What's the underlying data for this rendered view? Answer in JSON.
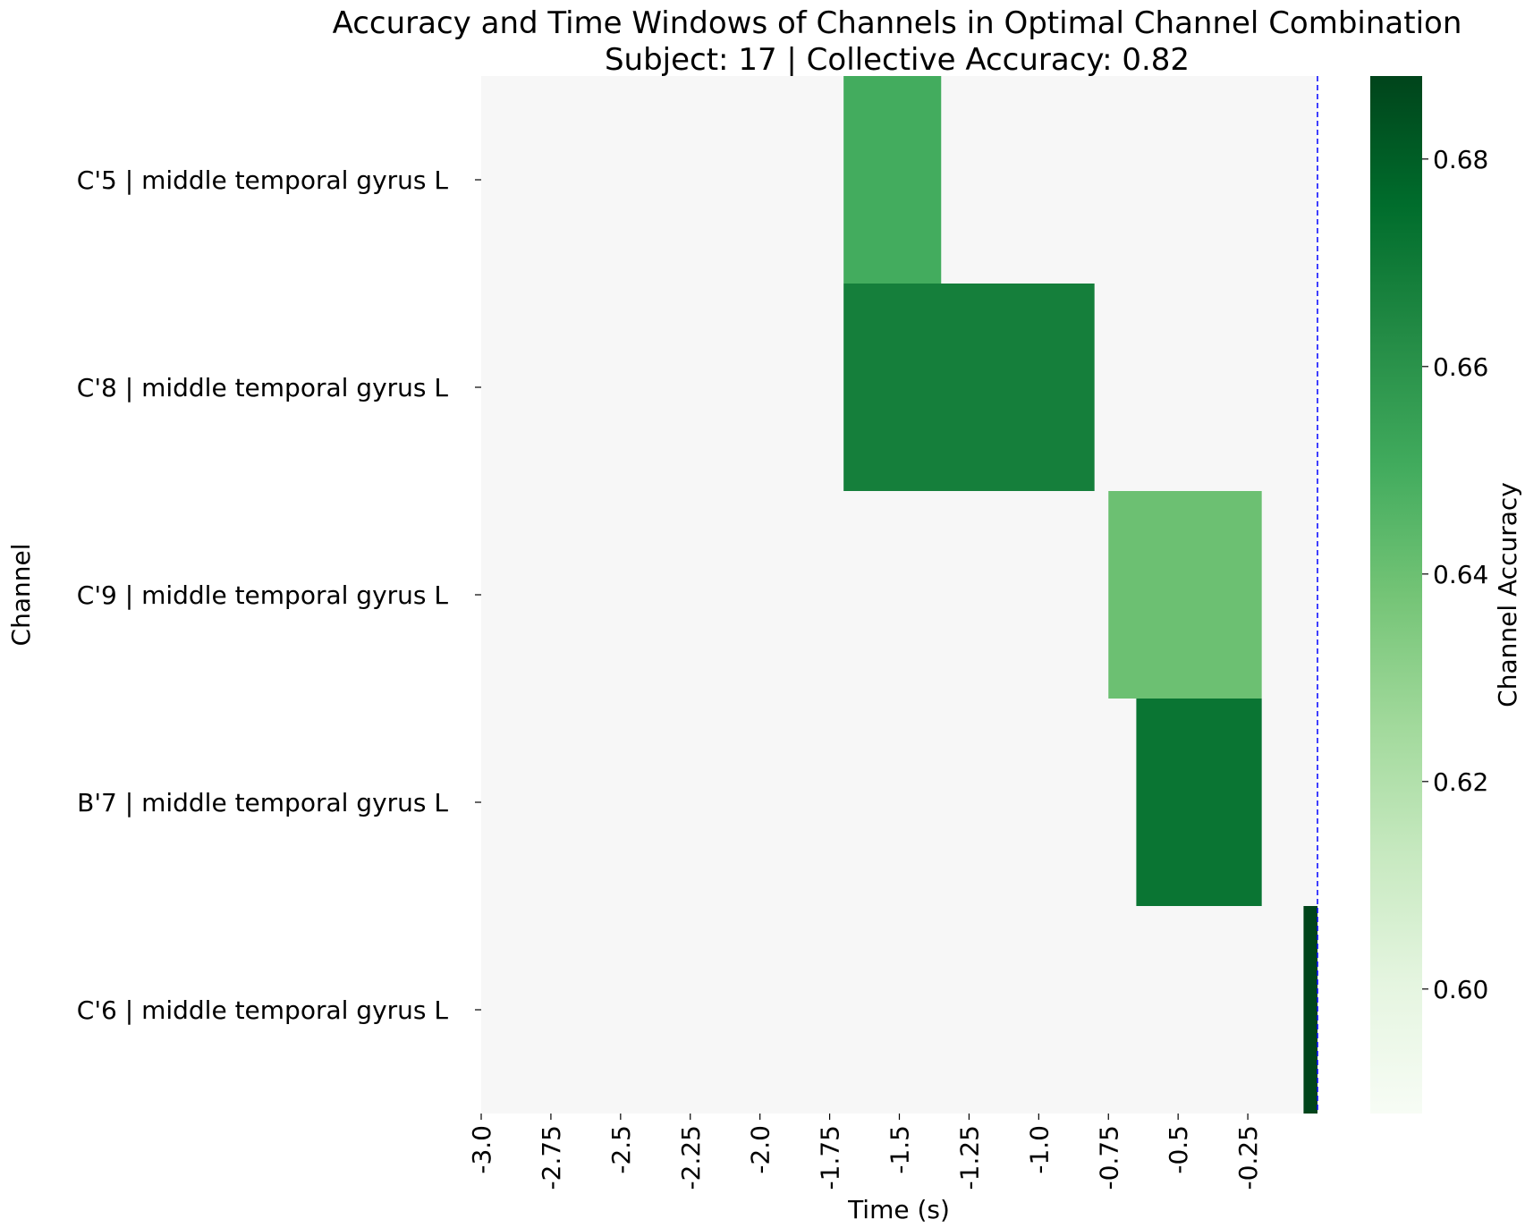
{
  "chart_data": {
    "type": "heatmap",
    "title": "Accuracy and Time Windows of Channels in Optimal Channel Combination",
    "subtitle": "Subject: 17 | Collective Accuracy: 0.82",
    "xlabel": "Time (s)",
    "ylabel": "Channel",
    "xlim": [
      -3.0,
      0.0
    ],
    "x_ticks": [
      "-3.0",
      "-2.75",
      "-2.5",
      "-2.25",
      "-2.0",
      "-1.75",
      "-1.5",
      "-1.25",
      "-1.0",
      "-0.75",
      "-0.5",
      "-0.25"
    ],
    "x_tick_values": [
      -3.0,
      -2.75,
      -2.5,
      -2.25,
      -2.0,
      -1.75,
      -1.5,
      -1.25,
      -1.0,
      -0.75,
      -0.5,
      -0.25
    ],
    "channels": [
      "C'5 | middle temporal gyrus L",
      "C'8 | middle temporal gyrus L",
      "C'9 | middle temporal gyrus L",
      "B'7 | middle temporal gyrus L",
      "C'6 | middle temporal gyrus L"
    ],
    "windows": [
      {
        "channel": "C'5 | middle temporal gyrus L",
        "start": -1.7,
        "end": -1.35,
        "accuracy": 0.65
      },
      {
        "channel": "C'8 | middle temporal gyrus L",
        "start": -1.7,
        "end": -0.8,
        "accuracy": 0.668
      },
      {
        "channel": "C'9 | middle temporal gyrus L",
        "start": -0.75,
        "end": -0.2,
        "accuracy": 0.64
      },
      {
        "channel": "B'7 | middle temporal gyrus L",
        "start": -0.65,
        "end": -0.2,
        "accuracy": 0.672
      },
      {
        "channel": "C'6 | middle temporal gyrus L",
        "start": -0.05,
        "end": 0.0,
        "accuracy": 0.688
      }
    ],
    "vline_x": 0.0,
    "colorbar": {
      "label": "Channel Accuracy",
      "range": [
        0.588,
        0.688
      ],
      "ticks": [
        "0.60",
        "0.62",
        "0.64",
        "0.66",
        "0.68"
      ],
      "tick_values": [
        0.6,
        0.62,
        0.64,
        0.66,
        0.68
      ],
      "colormap": "Greens"
    },
    "background_color": "#f7f7f7",
    "vline_color": "#0000ff",
    "grid": false,
    "legend": "none"
  }
}
